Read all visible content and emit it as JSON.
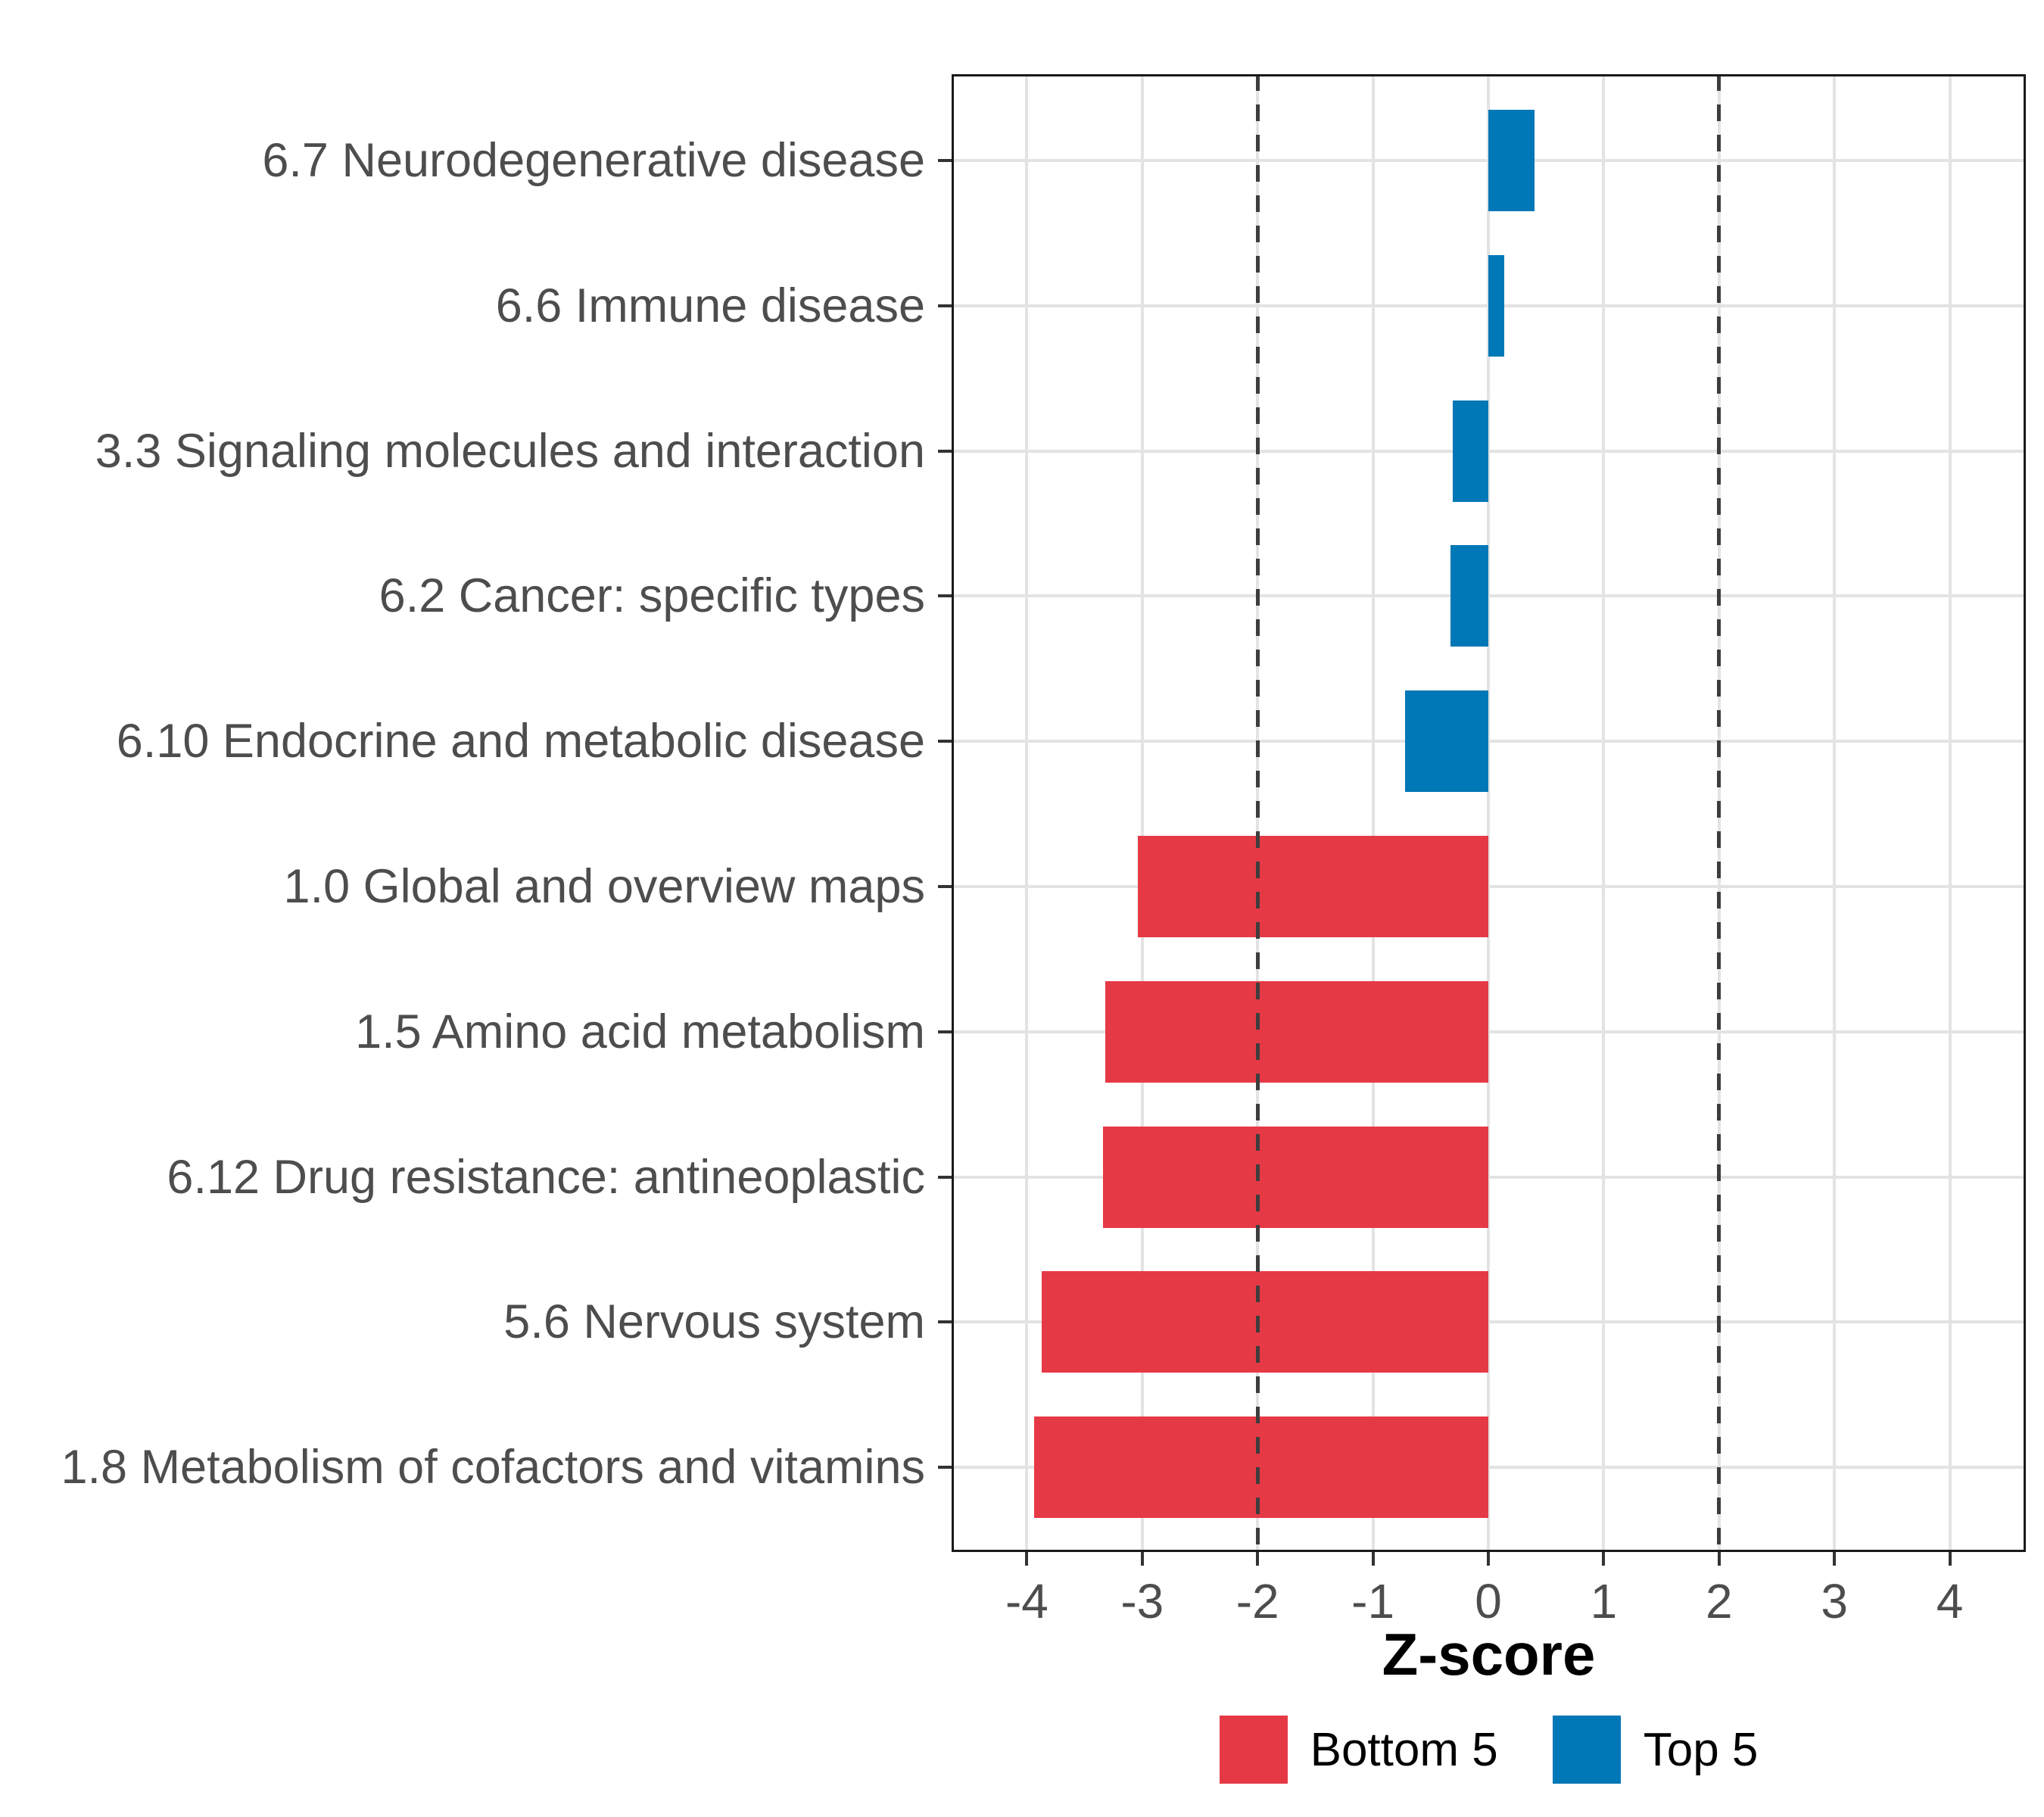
{
  "chart_data": {
    "type": "bar",
    "orientation": "horizontal",
    "title": "",
    "xlabel": "Z-score",
    "categories": [
      "6.7 Neurodegenerative disease",
      "6.6 Immune disease",
      "3.3 Signaling molecules and interaction",
      "6.2 Cancer: specific types",
      "6.10 Endocrine and metabolic disease",
      "1.0 Global and overview maps",
      "1.5 Amino acid metabolism",
      "6.12 Drug resistance: antineoplastic",
      "5.6 Nervous system",
      "1.8 Metabolism of cofactors and vitamins"
    ],
    "values": [
      0.4,
      0.14,
      -0.31,
      -0.33,
      -0.72,
      -3.04,
      -3.32,
      -3.34,
      -3.87,
      -3.94
    ],
    "groups": [
      "Top 5",
      "Top 5",
      "Top 5",
      "Top 5",
      "Top 5",
      "Bottom 5",
      "Bottom 5",
      "Bottom 5",
      "Bottom 5",
      "Bottom 5"
    ],
    "x_ticks": [
      -4,
      -3,
      -2,
      -1,
      0,
      1,
      2,
      3,
      4
    ],
    "xlim": [
      -4.65,
      4.66
    ],
    "reference_lines": [
      -2,
      2
    ],
    "grid": "major-only",
    "legend_position": "bottom",
    "legend": [
      {
        "label": "Bottom 5",
        "color": "#E63946"
      },
      {
        "label": "Top 5",
        "color": "#0077B6"
      }
    ]
  },
  "colors": {
    "background": "#FFFFFF",
    "panel_border": "#1A1A1A",
    "gridline": "#E3E3E3",
    "reference_line": "#3D3D3D",
    "axis_text": "#4D4D4D",
    "tick_mark": "#333333",
    "axis_title": "#000000",
    "bottom5": "#E63946",
    "top5": "#0077B6"
  }
}
